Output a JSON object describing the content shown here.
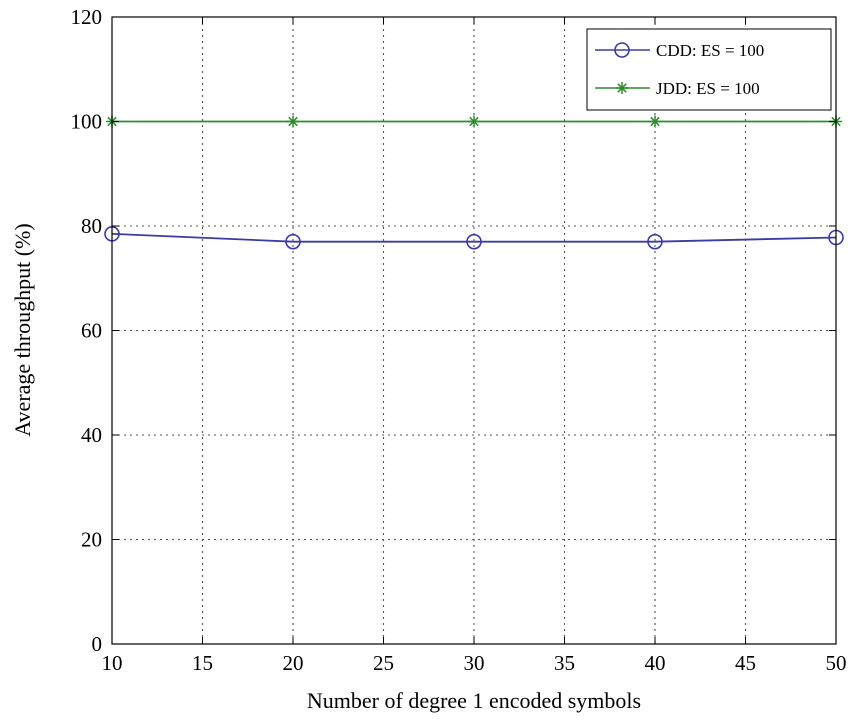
{
  "chart_data": {
    "type": "line",
    "xlabel": "Number of degree 1 encoded symbols",
    "ylabel": "Average throughput (%)",
    "xlim": [
      10,
      50
    ],
    "ylim": [
      0,
      120
    ],
    "xticks": [
      10,
      15,
      20,
      25,
      30,
      35,
      40,
      45,
      50
    ],
    "yticks": [
      0,
      20,
      40,
      60,
      80,
      100,
      120
    ],
    "grid": true,
    "legend_position": "top-right",
    "x": [
      10,
      20,
      30,
      40,
      50
    ],
    "series": [
      {
        "name": "CDD: ES = 100",
        "values": [
          78.5,
          77.0,
          77.0,
          77.0,
          77.8
        ],
        "color": "#3b3ba6",
        "marker": "circle"
      },
      {
        "name": "JDD: ES = 100",
        "values": [
          100,
          100,
          100,
          100,
          100
        ],
        "color": "#2e8b2e",
        "marker": "star"
      }
    ]
  }
}
